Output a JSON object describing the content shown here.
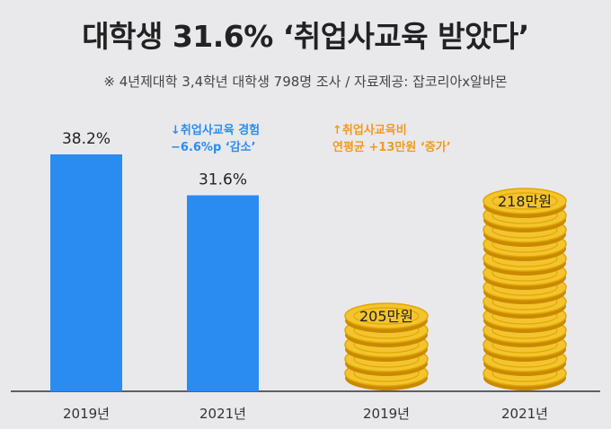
{
  "title": "대학생 31.6% ‘취업사교육 받았다’",
  "subtitle": "※ 4년제대학 3,4학년 대학생 798명 조사 / 자료제공: 잡코리아x알바몬",
  "notes": {
    "blue_line1": "↓취업사교육 경험",
    "blue_line2": "−6.6%p ‘감소’",
    "orange_line1": "↑취업사교육비",
    "orange_line2": "연평균 +13만원 ‘증가’"
  },
  "colors": {
    "blue": "#2a8cf0",
    "coin": "#f4c430",
    "coin_edge": "#e0a800",
    "coin_dark": "#c98a00"
  },
  "chart_data": [
    {
      "type": "bar",
      "categories": [
        "2019년",
        "2021년"
      ],
      "values": [
        38.2,
        31.6
      ],
      "value_labels": [
        "38.2%",
        "31.6%"
      ]
    },
    {
      "type": "bar",
      "categories": [
        "2019년",
        "2021년"
      ],
      "values": [
        205,
        218
      ],
      "value_labels": [
        "205만원",
        "218만원"
      ]
    }
  ]
}
